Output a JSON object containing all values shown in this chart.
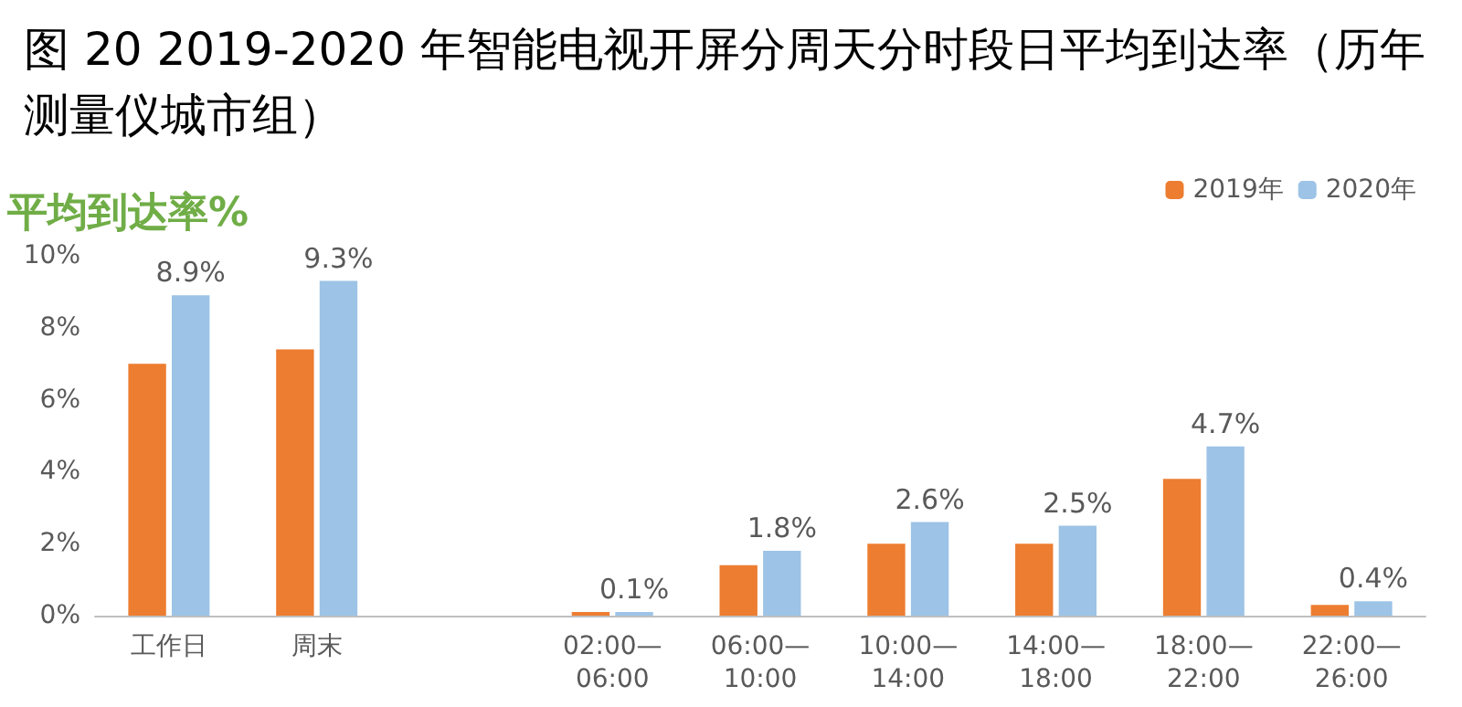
{
  "chart_data": {
    "type": "bar",
    "title": "图 20 2019-2020 年智能电视开屏分周天分时段日平均到达率（历年测量仪城市组）",
    "ylabel": "平均到达率%",
    "categories": [
      "工作日",
      "周末",
      null,
      "02:00—\n06:00",
      "06:00—\n10:00",
      "10:00—\n14:00",
      "14:00—\n18:00",
      "18:00—\n22:00",
      "22:00—\n26:00"
    ],
    "series": [
      {
        "name": "2019年",
        "color": "#ed7d31",
        "values": [
          7.0,
          7.4,
          null,
          0.1,
          1.4,
          2.0,
          2.0,
          3.8,
          0.3
        ]
      },
      {
        "name": "2020年",
        "color": "#9dc3e6",
        "values": [
          8.9,
          9.3,
          null,
          0.1,
          1.8,
          2.6,
          2.5,
          4.7,
          0.4
        ],
        "value_labels": [
          "8.9%",
          "9.3%",
          null,
          "0.1%",
          "1.8%",
          "2.6%",
          "2.5%",
          "4.7%",
          "0.4%"
        ]
      }
    ],
    "ylim": [
      0,
      10
    ],
    "yticks": [
      {
        "value": 0,
        "label": "0%"
      },
      {
        "value": 2,
        "label": "2%"
      },
      {
        "value": 4,
        "label": "4%"
      },
      {
        "value": 6,
        "label": "6%"
      },
      {
        "value": 8,
        "label": "8%"
      },
      {
        "value": 10,
        "label": "10%"
      }
    ],
    "grid": false,
    "legend": "top right"
  }
}
